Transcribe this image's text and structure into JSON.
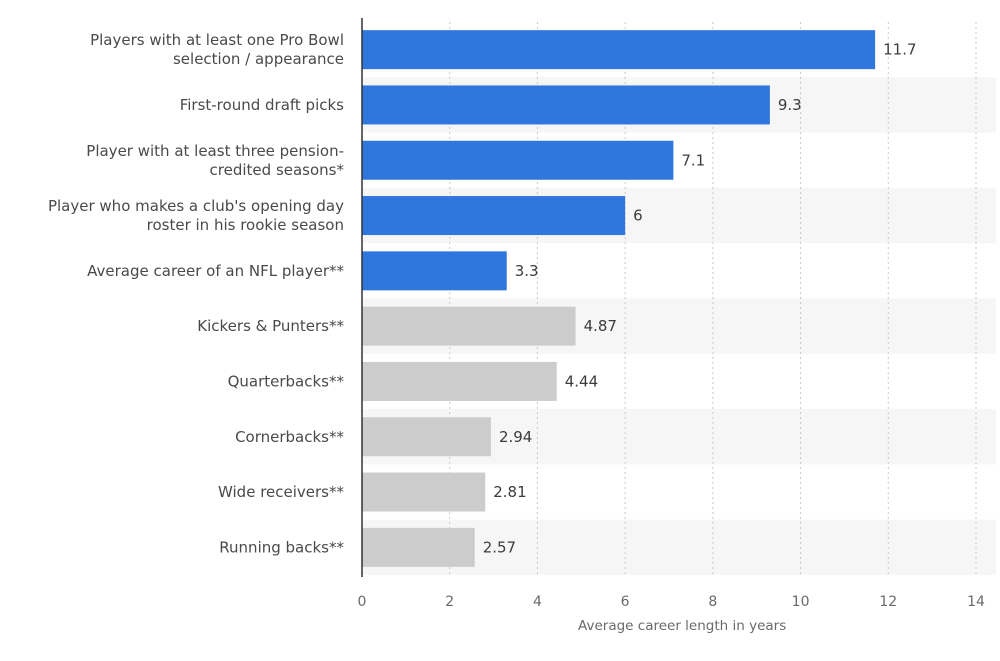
{
  "chart_data": {
    "type": "bar",
    "orientation": "horizontal",
    "categories": [
      "Players with at least one Pro Bowl selection / appearance",
      "First-round draft picks",
      "Player with at least three pension-credited seasons*",
      "Player who makes a club's opening day roster in his rookie season",
      "Average career of an NFL player**",
      "Kickers & Punters**",
      "Quarterbacks**",
      "Cornerbacks**",
      "Wide receivers**",
      "Running backs**"
    ],
    "category_lines": [
      [
        "Players with at least one Pro Bowl",
        "selection / appearance"
      ],
      [
        "First-round draft picks"
      ],
      [
        "Player with at least three pension-",
        "credited seasons*"
      ],
      [
        "Player who makes a club's opening day",
        "roster in his rookie season"
      ],
      [
        "Average career of an NFL player**"
      ],
      [
        "Kickers & Punters**"
      ],
      [
        "Quarterbacks**"
      ],
      [
        "Cornerbacks**"
      ],
      [
        "Wide receivers**"
      ],
      [
        "Running backs**"
      ]
    ],
    "values": [
      11.7,
      9.3,
      7.1,
      6,
      3.3,
      4.87,
      4.44,
      2.94,
      2.81,
      2.57
    ],
    "value_labels": [
      "11.7",
      "9.3",
      "7.1",
      "6",
      "3.3",
      "4.87",
      "4.44",
      "2.94",
      "2.81",
      "2.57"
    ],
    "bar_colors": [
      "#2f76dd",
      "#2f76dd",
      "#2f76dd",
      "#2f76dd",
      "#2f76dd",
      "#cccccc",
      "#cccccc",
      "#cccccc",
      "#cccccc",
      "#cccccc"
    ],
    "xlabel": "Average career length in years",
    "ylabel": "",
    "title": "",
    "xlim": [
      0,
      14
    ],
    "xticks": [
      0,
      2,
      4,
      6,
      8,
      10,
      12,
      14
    ],
    "grid": "vertical dashed",
    "legend": "none",
    "colors": {
      "highlight_bar": "#2f76dd",
      "grey_bar": "#cccccc",
      "stripe": "#f6f6f6",
      "grid": "#c8c8c8",
      "axis": "#333333"
    }
  }
}
